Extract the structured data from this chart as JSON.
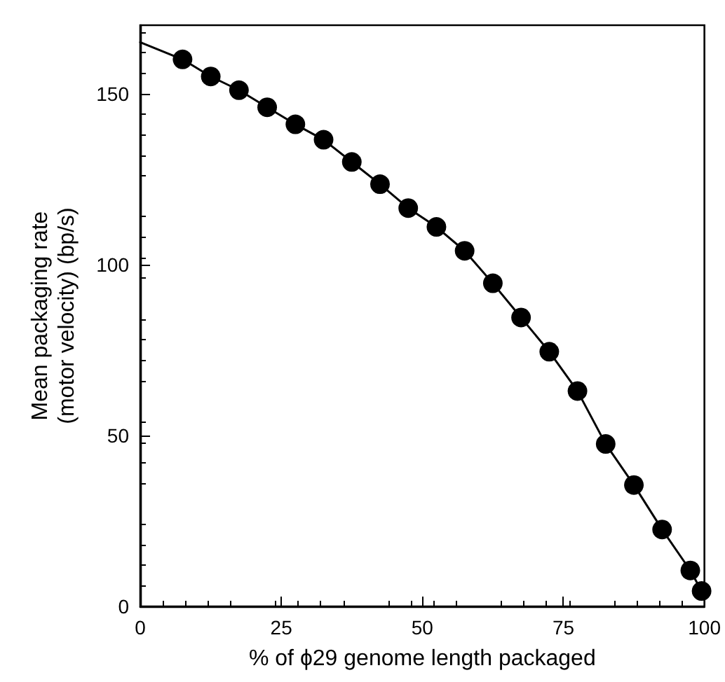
{
  "chart_data": {
    "type": "scatter",
    "xlabel": "% of ϕ29 genome length packaged",
    "ylabel": "Mean packaging rate\n(motor velocity) (bp/s)",
    "xlim": [
      0,
      100
    ],
    "xticks": [
      0,
      25,
      50,
      75,
      100
    ],
    "ylim": [
      0,
      170
    ],
    "yticks": [
      0,
      50,
      100,
      150
    ],
    "grid": false,
    "marker": "circle",
    "series": [
      {
        "type": "line",
        "color": "#000000",
        "marker": "none",
        "line_style": "solid",
        "x": [
          0,
          7.5,
          12.5,
          17.5,
          22.5,
          27.5,
          32.5,
          37.5,
          42.5,
          47.5,
          52.5,
          57.5,
          62.5,
          67.5,
          72.5,
          77.5,
          82.5,
          87.5,
          92.5,
          97.5,
          99.5
        ],
        "values": [
          165,
          160,
          155,
          151,
          146,
          141,
          136.5,
          130,
          123.5,
          116.5,
          111,
          104,
          94.5,
          84.5,
          74.5,
          63,
          47.5,
          35.5,
          22.5,
          10.5,
          4.5
        ]
      },
      {
        "type": "scatter",
        "color": "#000000",
        "x": [
          7.5,
          12.5,
          17.5,
          22.5,
          27.5,
          32.5,
          37.5,
          42.5,
          47.5,
          52.5,
          57.5,
          62.5,
          67.5,
          72.5,
          77.5,
          82.5,
          87.5,
          92.5,
          97.5,
          99.5
        ],
        "values": [
          160,
          155,
          151,
          146,
          141,
          136.5,
          130,
          123.5,
          116.5,
          111,
          104,
          94.5,
          84.5,
          74.5,
          63,
          47.5,
          35.5,
          22.5,
          10.5,
          4.5
        ]
      }
    ]
  }
}
